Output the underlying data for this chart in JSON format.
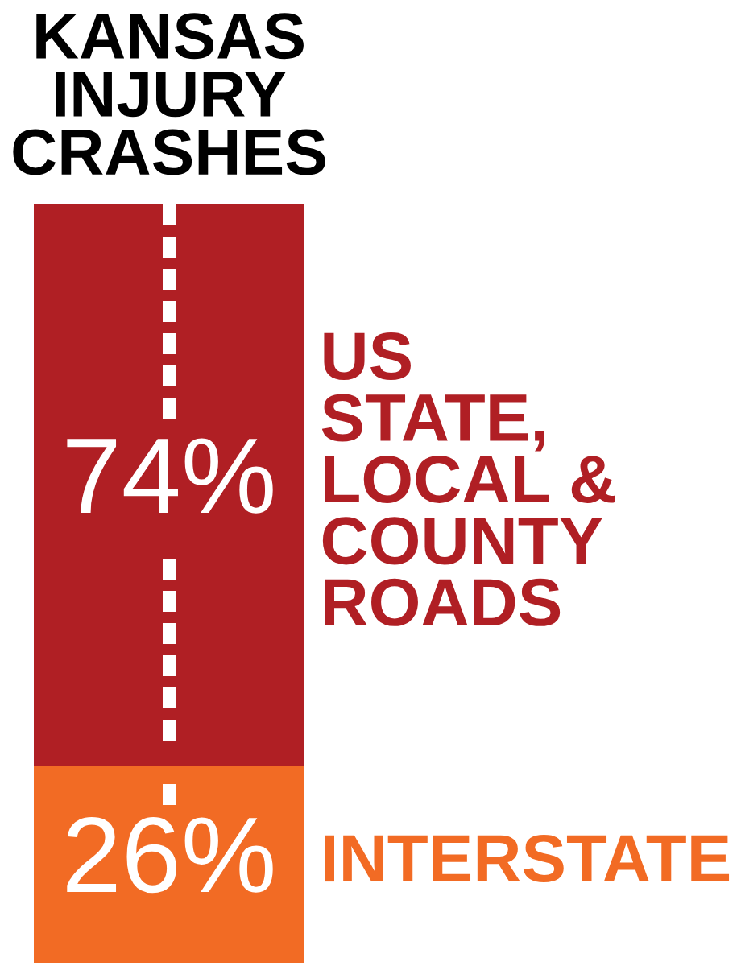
{
  "chart_data": {
    "type": "bar",
    "title": "KANSAS\nINJURY\nCRASHES",
    "categories": [
      null
    ],
    "stacked": true,
    "series": [
      {
        "name": "INTERSTATE",
        "color": "#f26b24",
        "values": [
          26
        ],
        "value_labels": [
          "26%"
        ]
      },
      {
        "name": "US\nSTATE,\nLOCAL &\nCOUNTY\nROADS",
        "color": "#b01f24",
        "values": [
          74
        ],
        "value_labels": [
          "74%"
        ]
      }
    ]
  }
}
